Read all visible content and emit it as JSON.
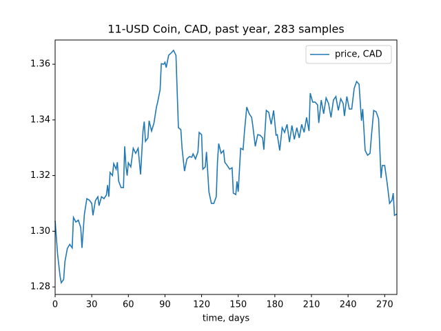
{
  "chart_data": {
    "type": "line",
    "title": "11-USD Coin, CAD, past year, 283 samples",
    "x_label": "time, days",
    "x": [
      0,
      2,
      4,
      5,
      7,
      8,
      10,
      12,
      14,
      15,
      17,
      19,
      21,
      22,
      24,
      26,
      28,
      30,
      31,
      33,
      35,
      36,
      38,
      40,
      42,
      43,
      44,
      45,
      47,
      48,
      50,
      51,
      52,
      54,
      56,
      57,
      58,
      59,
      60,
      62,
      64,
      66,
      68,
      70,
      72,
      73,
      74,
      76,
      77,
      79,
      81,
      83,
      84,
      86,
      87,
      89,
      90,
      91,
      93,
      95,
      97,
      99,
      101,
      103,
      104,
      106,
      108,
      110,
      112,
      113,
      115,
      117,
      118,
      120,
      121,
      123,
      124,
      126,
      128,
      130,
      132,
      133,
      134,
      136,
      138,
      139,
      141,
      143,
      145,
      146,
      148,
      149,
      150,
      152,
      154,
      155,
      157,
      159,
      161,
      162,
      164,
      166,
      168,
      170,
      171,
      173,
      175,
      177,
      179,
      181,
      182,
      184,
      186,
      188,
      190,
      192,
      194,
      196,
      198,
      200,
      202,
      204,
      206,
      208,
      209,
      211,
      213,
      215,
      216,
      218,
      220,
      222,
      224,
      226,
      228,
      230,
      232,
      234,
      236,
      237,
      239,
      241,
      243,
      245,
      247,
      249,
      251,
      252,
      254,
      256,
      258,
      259,
      261,
      263,
      265,
      267,
      268,
      270,
      272,
      274,
      276,
      277,
      278,
      280
    ],
    "series": [
      {
        "name": "price, CAD",
        "color": "#1f77b4",
        "values": [
          1.3038,
          1.2919,
          1.284,
          1.2815,
          1.2827,
          1.289,
          1.2938,
          1.2953,
          1.294,
          1.305,
          1.3033,
          1.304,
          1.3013,
          1.294,
          1.3062,
          1.3117,
          1.3112,
          1.31,
          1.3057,
          1.311,
          1.3124,
          1.3092,
          1.3124,
          1.3117,
          1.313,
          1.3166,
          1.3124,
          1.3211,
          1.32,
          1.3243,
          1.3223,
          1.3248,
          1.3181,
          1.3157,
          1.3157,
          1.3305,
          1.3236,
          1.32,
          1.3246,
          1.3231,
          1.3298,
          1.328,
          1.3298,
          1.3204,
          1.336,
          1.3394,
          1.3323,
          1.3335,
          1.3397,
          1.336,
          1.3389,
          1.3446,
          1.3464,
          1.3508,
          1.3602,
          1.36,
          1.3607,
          1.3588,
          1.3632,
          1.364,
          1.365,
          1.3632,
          1.3372,
          1.3365,
          1.3298,
          1.3216,
          1.326,
          1.3268,
          1.3266,
          1.3278,
          1.326,
          1.3285,
          1.3355,
          1.3347,
          1.3223,
          1.3231,
          1.3285,
          1.3142,
          1.31,
          1.31,
          1.3124,
          1.3248,
          1.3315,
          1.328,
          1.329,
          1.3248,
          1.3236,
          1.3223,
          1.3228,
          1.3137,
          1.3132,
          1.3179,
          1.3142,
          1.3298,
          1.3293,
          1.3352,
          1.3446,
          1.3422,
          1.3409,
          1.3377,
          1.3305,
          1.3347,
          1.3345,
          1.3335,
          1.3293,
          1.3434,
          1.3427,
          1.3384,
          1.3434,
          1.3345,
          1.3347,
          1.329,
          1.3372,
          1.3355,
          1.3384,
          1.332,
          1.338,
          1.333,
          1.3372,
          1.3335,
          1.3384,
          1.3355,
          1.3409,
          1.336,
          1.3496,
          1.3464,
          1.3464,
          1.3454,
          1.3389,
          1.3471,
          1.3422,
          1.3479,
          1.3459,
          1.3409,
          1.3471,
          1.3484,
          1.3434,
          1.3476,
          1.3459,
          1.3414,
          1.3484,
          1.3439,
          1.3439,
          1.3513,
          1.3538,
          1.3528,
          1.3397,
          1.3439,
          1.329,
          1.3273,
          1.328,
          1.3335,
          1.3434,
          1.3429,
          1.3404,
          1.3191,
          1.3236,
          1.3236,
          1.3174,
          1.31,
          1.3112,
          1.3137,
          1.3057,
          1.3062
        ]
      }
    ],
    "xlim": [
      0,
      280
    ],
    "ylim": [
      1.2773,
      1.3687
    ],
    "xticks": [
      0,
      30,
      60,
      90,
      120,
      150,
      180,
      210,
      240,
      270
    ],
    "yticks": [
      1.28,
      {
        "value": 1.3,
        "label": "1.30"
      },
      1.32,
      1.34,
      1.36
    ],
    "legend": "upper right",
    "grid": false
  }
}
